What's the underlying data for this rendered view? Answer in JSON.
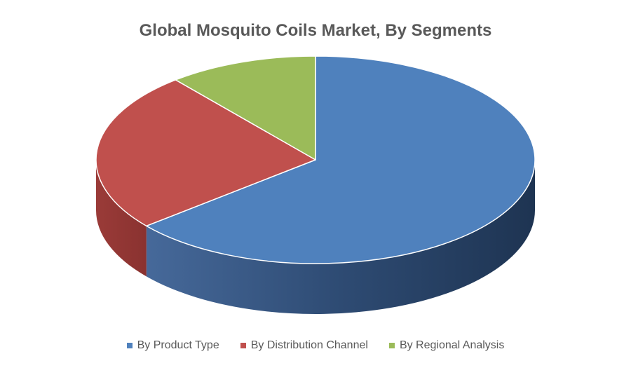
{
  "chart_data": {
    "type": "pie",
    "title": "Global Mosquito Coils Market, By Segments",
    "slices": [
      {
        "name": "By Product Type",
        "value": 64,
        "color": "#4F81BD",
        "side_color": "#2F4F78"
      },
      {
        "name": "By Distribution Channel",
        "value": 25,
        "color": "#C0504D",
        "side_color": "#8B3330"
      },
      {
        "name": "By Regional Analysis",
        "value": 11,
        "color": "#9BBB59",
        "side_color": "#6E8A3A"
      }
    ],
    "legend_position": "bottom",
    "style": "3d"
  }
}
